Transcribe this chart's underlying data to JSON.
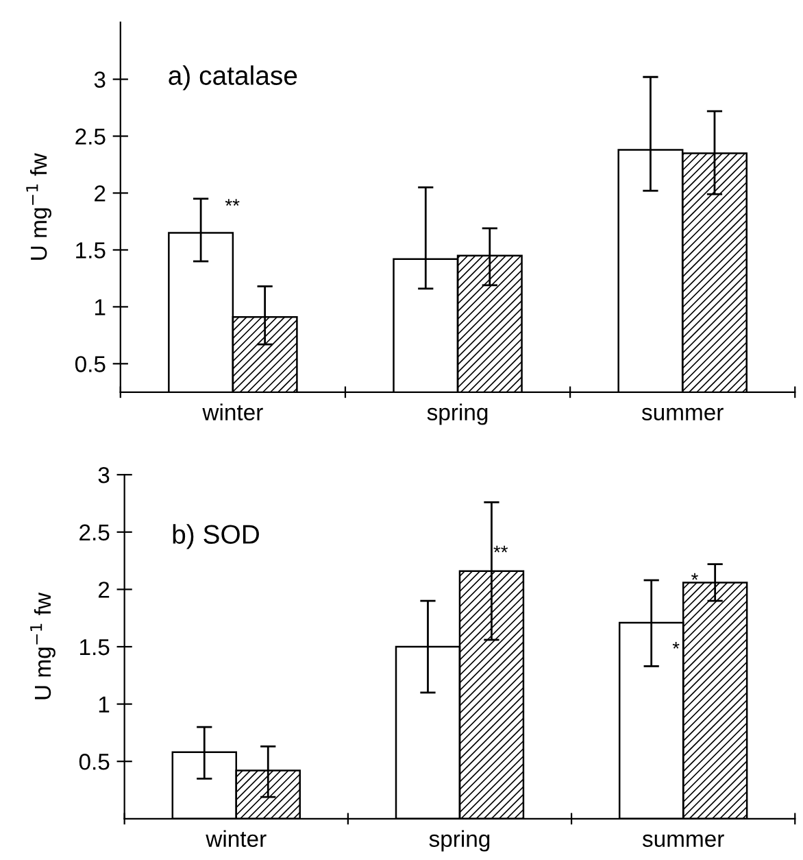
{
  "chart_data": [
    {
      "type": "bar",
      "categories": [
        "winter",
        "spring",
        "summer"
      ],
      "ylabel": "U mg$^{−1}$ fw",
      "ylim": [
        0.25,
        3.5
      ],
      "yticks": [
        0.5,
        1,
        1.5,
        2,
        2.5,
        3
      ],
      "grid": false,
      "legend": false,
      "series": [
        {
          "color": "#ffffff",
          "values": [
            1.65,
            1.42,
            2.38
          ],
          "errors": [
            [
              1.4,
              1.95
            ],
            [
              1.16,
              2.05
            ],
            [
              2.02,
              3.02
            ]
          ]
        },
        {
          "color": "#000000",
          "values": [
            0.91,
            1.45,
            2.35
          ],
          "errors": [
            [
              0.67,
              1.18
            ],
            [
              1.19,
              1.69
            ],
            [
              1.99,
              2.72
            ]
          ]
        }
      ],
      "annotations": [
        "a) catalase",
        "**"
      ]
    },
    {
      "type": "bar",
      "categories": [
        "winter",
        "spring",
        "summer"
      ],
      "ylabel": "U mg$^{−1}$ fw",
      "ylim": [
        0,
        3
      ],
      "yticks": [
        0.5,
        1,
        1.5,
        2,
        2.5,
        3
      ],
      "grid": false,
      "legend": false,
      "series": [
        {
          "color": "#ffffff",
          "values": [
            0.58,
            1.5,
            1.71
          ],
          "errors": [
            [
              0.35,
              0.8
            ],
            [
              1.1,
              1.9
            ],
            [
              1.33,
              2.08
            ]
          ]
        },
        {
          "color": "#000000",
          "values": [
            0.42,
            2.16,
            2.06
          ],
          "errors": [
            [
              0.19,
              0.63
            ],
            [
              1.56,
              2.76
            ],
            [
              1.9,
              2.22
            ]
          ]
        }
      ],
      "annotations": [
        "b) SOD",
        "**",
        "*",
        "*"
      ]
    }
  ]
}
